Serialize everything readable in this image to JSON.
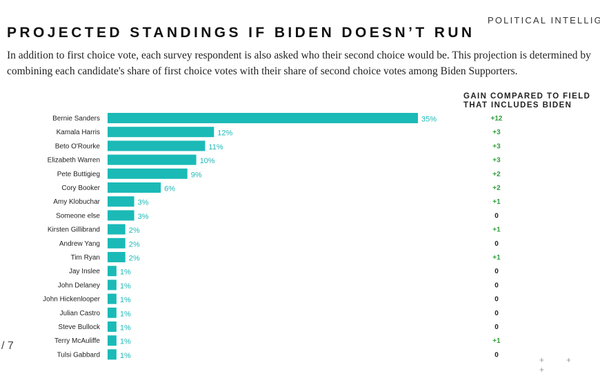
{
  "brand": "POLITICAL INTELLIGE",
  "title": "PROJECTED STANDINGS IF BIDEN DOESN’T RUN",
  "subtitle": "In addition to first choice vote, each survey respondent is also asked who their second choice would be. This projection is determined by combining each candidate's share of first choice votes with their share of second choice votes among Biden Supporters.",
  "gain_header_line1": "GAIN COMPARED TO FIELD",
  "gain_header_line2": "THAT INCLUDES BIDEN",
  "page_number": "/ 7",
  "decor_plus": [
    "+",
    "+",
    "+"
  ],
  "colors": {
    "bar": "#1bbab7",
    "gain_positive": "#2e9e3a",
    "gain_zero": "#222222"
  },
  "chart_data": {
    "type": "bar",
    "orientation": "horizontal",
    "categories": [
      "Bernie Sanders",
      "Kamala Harris",
      "Beto O'Rourke",
      "Elizabeth Warren",
      "Pete Buttigieg",
      "Cory Booker",
      "Amy Klobuchar",
      "Someone else",
      "Kirsten Gillibrand",
      "Andrew Yang",
      "Tim Ryan",
      "Jay Inslee",
      "John Delaney",
      "John Hickenlooper",
      "Julian Castro",
      "Steve Bullock",
      "Terry McAuliffe",
      "Tulsi Gabbard"
    ],
    "values": [
      35,
      12,
      11,
      10,
      9,
      6,
      3,
      3,
      2,
      2,
      2,
      1,
      1,
      1,
      1,
      1,
      1,
      1
    ],
    "value_labels": [
      "35%",
      "12%",
      "11%",
      "10%",
      "9%",
      "6%",
      "3%",
      "3%",
      "2%",
      "2%",
      "2%",
      "1%",
      "1%",
      "1%",
      "1%",
      "1%",
      "1%",
      "1%"
    ],
    "gain_values": [
      12,
      3,
      3,
      3,
      2,
      2,
      1,
      0,
      1,
      0,
      1,
      0,
      0,
      0,
      0,
      0,
      1,
      0
    ],
    "gain_labels": [
      "+12",
      "+3",
      "+3",
      "+3",
      "+2",
      "+2",
      "+1",
      "0",
      "+1",
      "0",
      "+1",
      "0",
      "0",
      "0",
      "0",
      "0",
      "+1",
      "0"
    ],
    "xlim": [
      0,
      35
    ],
    "grid": false,
    "legend": "none"
  }
}
